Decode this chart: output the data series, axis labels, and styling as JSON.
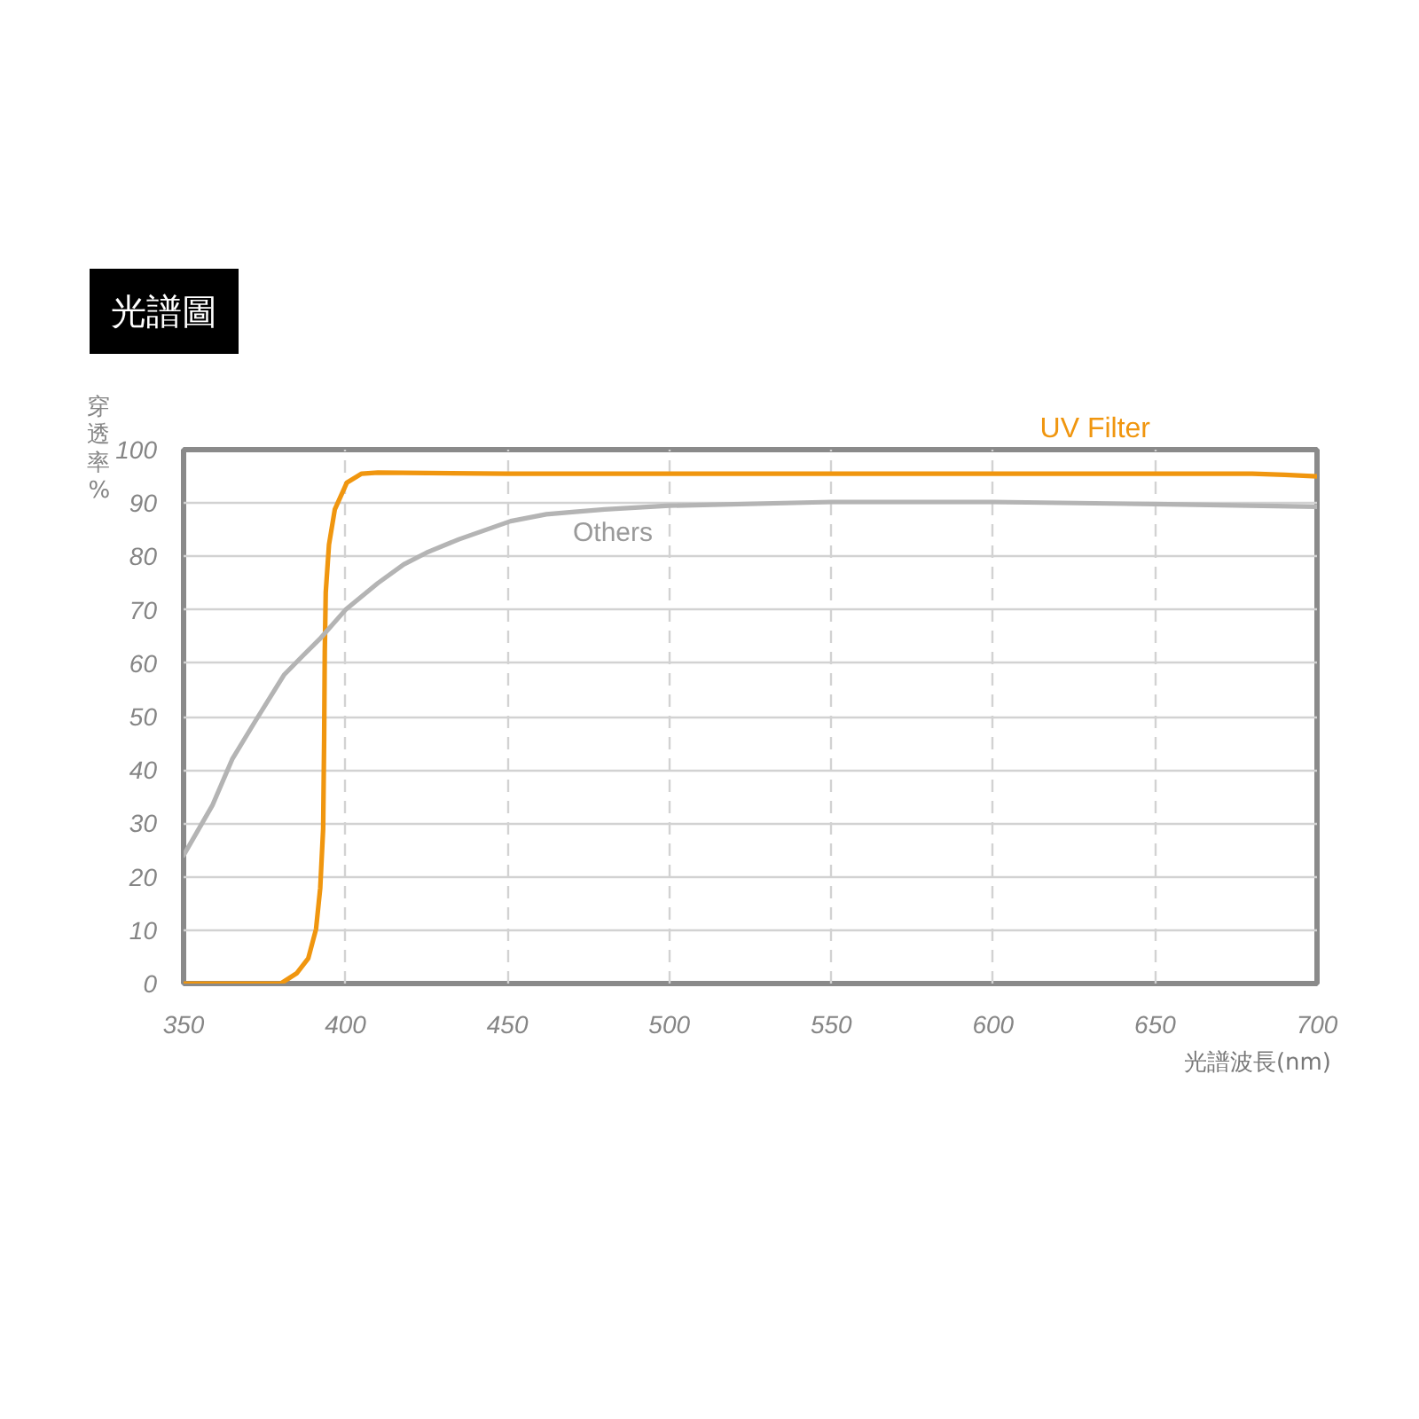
{
  "chart_data": {
    "type": "line",
    "title": "光譜圖",
    "xlabel": "光譜波長(nm)",
    "ylabel": "穿透率%",
    "xlim": [
      350,
      700
    ],
    "ylim": [
      0,
      100
    ],
    "xticks": [
      350,
      400,
      450,
      500,
      550,
      600,
      650,
      700
    ],
    "yticks": [
      0,
      10,
      20,
      30,
      40,
      50,
      60,
      70,
      80,
      90,
      100
    ],
    "grid": true,
    "legend": false,
    "series": [
      {
        "name": "UV Filter",
        "color": "#f0960f",
        "x": [
          350,
          370,
          380,
          384.9,
          388.5,
          390.9,
          392.2,
          393.1,
          393.4,
          393.6,
          393.9,
          394.9,
          396.7,
          400.4,
          405,
          410,
          450,
          500,
          550,
          600,
          650,
          680,
          690,
          700
        ],
        "values": [
          0,
          0,
          0,
          1.9,
          4.7,
          10.2,
          17.9,
          29,
          45.6,
          62.2,
          73.3,
          82.2,
          88.8,
          93.8,
          95.5,
          95.7,
          95.5,
          95.5,
          95.5,
          95.5,
          95.5,
          95.5,
          95.3,
          95
        ]
      },
      {
        "name": "Others",
        "color": "#b4b4b4",
        "x": [
          350,
          359,
          365,
          372,
          381,
          387,
          392,
          400,
          410,
          418,
          425,
          435,
          443,
          451,
          462,
          470,
          480,
          500,
          550,
          600,
          650,
          700
        ],
        "values": [
          24,
          33.5,
          42,
          49,
          57.8,
          61.5,
          64.5,
          70,
          75,
          78.5,
          80.7,
          83.2,
          84.9,
          86.6,
          87.9,
          88.3,
          88.8,
          89.5,
          90.2,
          90.2,
          89.8,
          89.3
        ]
      }
    ]
  }
}
